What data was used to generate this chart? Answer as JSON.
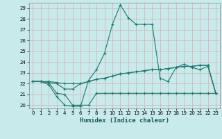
{
  "xlabel": "Humidex (Indice chaleur)",
  "bg_color": "#c8eaea",
  "grid_color": "#d4b8b8",
  "line_color": "#1a7a6e",
  "xlim": [
    -0.5,
    23.5
  ],
  "ylim": [
    19.7,
    29.5
  ],
  "xticks": [
    0,
    1,
    2,
    3,
    4,
    5,
    6,
    7,
    8,
    9,
    10,
    11,
    12,
    13,
    14,
    15,
    16,
    17,
    18,
    19,
    20,
    21,
    22,
    23
  ],
  "yticks": [
    20,
    21,
    22,
    23,
    24,
    25,
    26,
    27,
    28,
    29
  ],
  "line1_x": [
    0,
    1,
    2,
    3,
    4,
    5,
    6,
    7,
    8,
    9,
    10,
    11,
    12,
    13,
    14,
    15,
    16,
    17,
    18,
    19,
    20,
    21,
    22,
    23
  ],
  "line1_y": [
    22.2,
    22.2,
    21.9,
    20.8,
    20.0,
    19.9,
    19.9,
    22.3,
    23.3,
    24.8,
    27.5,
    29.3,
    28.1,
    27.5,
    27.5,
    27.5,
    22.5,
    22.2,
    23.5,
    23.8,
    23.5,
    23.3,
    23.6,
    21.1
  ],
  "line2_x": [
    0,
    1,
    2,
    3,
    4,
    5,
    6,
    7,
    8,
    9,
    10,
    11,
    12,
    13,
    14,
    15,
    16,
    17,
    18,
    19,
    20,
    21,
    22,
    23
  ],
  "line2_y": [
    22.2,
    22.2,
    22.1,
    22.0,
    21.5,
    21.5,
    22.0,
    22.2,
    22.4,
    22.5,
    22.7,
    22.9,
    23.0,
    23.1,
    23.2,
    23.3,
    23.3,
    23.4,
    23.5,
    23.6,
    23.6,
    23.7,
    23.7,
    21.1
  ],
  "line3_x": [
    0,
    1,
    2,
    3,
    4,
    5,
    6,
    7,
    8,
    9,
    10,
    11,
    12,
    13,
    14,
    15,
    16,
    17,
    18,
    19,
    20,
    21,
    22,
    23
  ],
  "line3_y": [
    22.2,
    22.2,
    22.1,
    21.1,
    21.0,
    20.0,
    20.0,
    20.0,
    21.1,
    21.1,
    21.1,
    21.1,
    21.1,
    21.1,
    21.1,
    21.1,
    21.1,
    21.1,
    21.1,
    21.1,
    21.1,
    21.1,
    21.1,
    21.1
  ],
  "line4_x": [
    0,
    1,
    2,
    3,
    4,
    5,
    6,
    7,
    8,
    9,
    10,
    11,
    12,
    13,
    14,
    15,
    16,
    17,
    18,
    19,
    20,
    21,
    22,
    23
  ],
  "line4_y": [
    22.2,
    22.2,
    22.2,
    22.1,
    22.0,
    22.0,
    22.0,
    22.2,
    22.4,
    22.5,
    22.7,
    22.9,
    23.0,
    23.1,
    23.2,
    23.3,
    23.3,
    23.4,
    23.5,
    23.6,
    23.6,
    23.7,
    23.7,
    21.1
  ]
}
